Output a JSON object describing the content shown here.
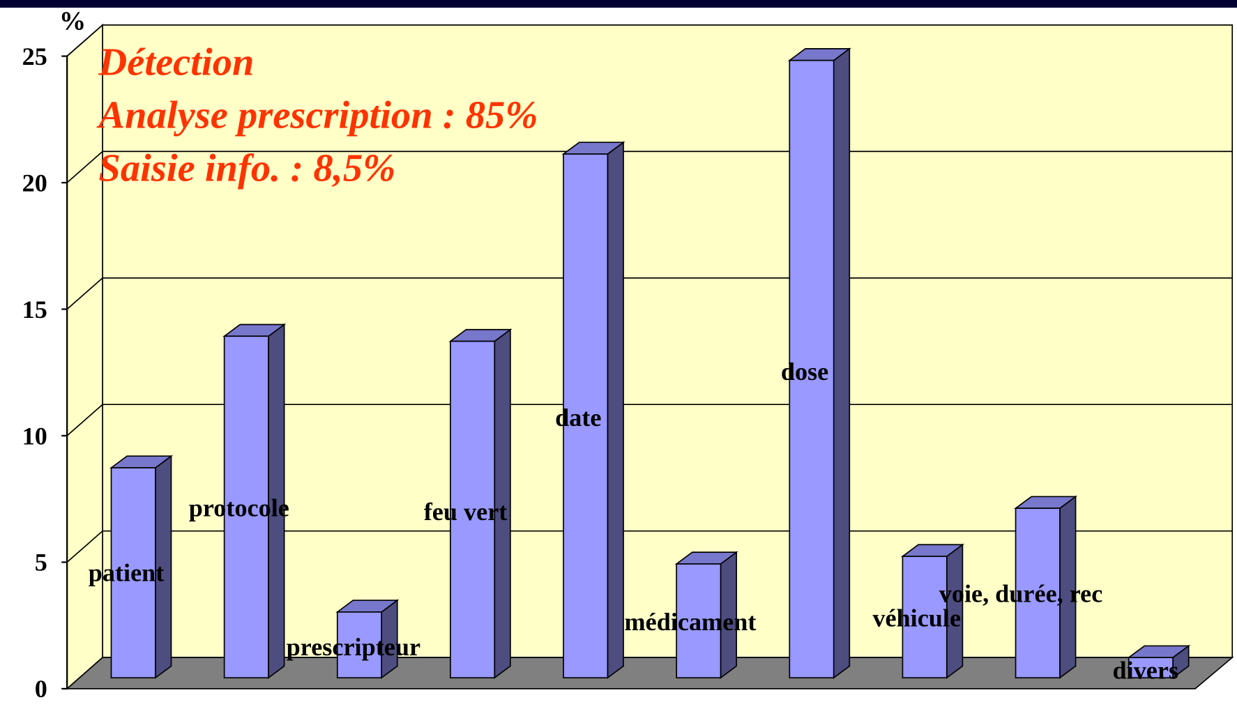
{
  "chart_data": {
    "type": "bar3d",
    "y_label": "%",
    "annotations": [
      "Détection",
      "Analyse prescription : 85%",
      "Saisie info. : 8,5%"
    ],
    "categories": [
      "patient",
      "protocole",
      "prescripteur",
      "feu vert",
      "date",
      "médicament",
      "dose",
      "véhicule",
      "voie, durée, rec",
      "divers"
    ],
    "values": [
      8.3,
      13.5,
      2.6,
      13.3,
      20.7,
      4.5,
      24.4,
      4.8,
      6.7,
      0.8
    ],
    "color": "#9999ff",
    "ylim": [
      0,
      25
    ],
    "yticks": [
      0,
      5,
      10,
      15,
      20,
      25
    ],
    "grid": true
  }
}
